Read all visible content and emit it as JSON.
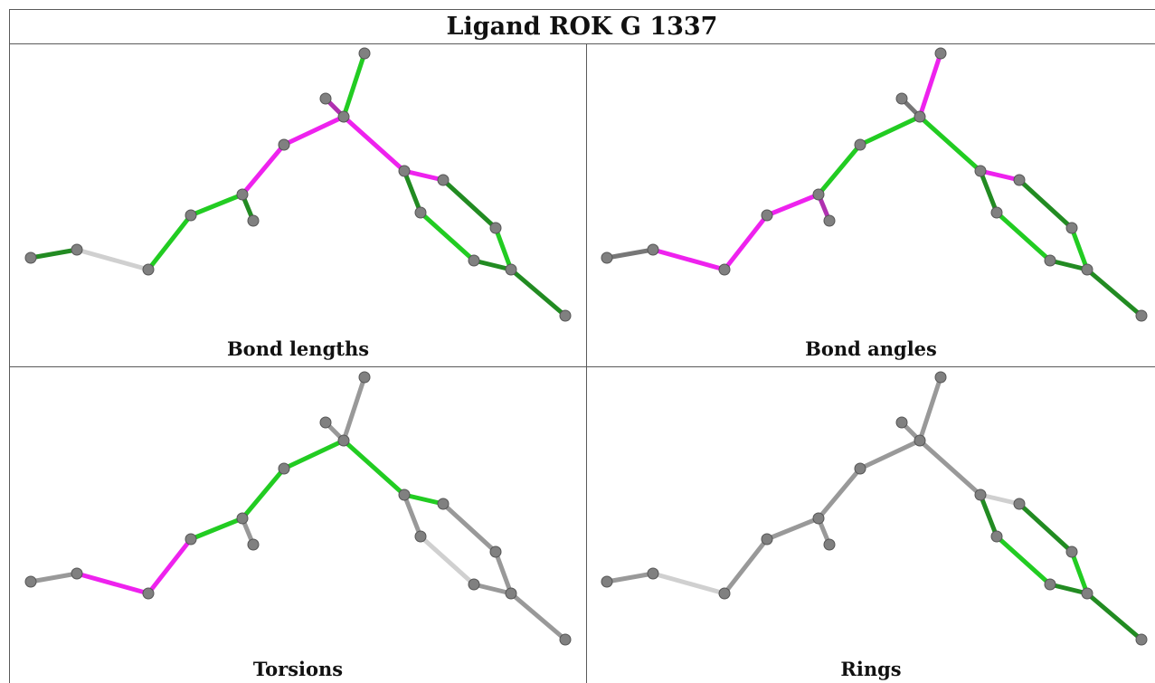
{
  "title": "Ligand ROK G 1337",
  "panels": [
    {
      "caption": "Bond lengths",
      "bond_colors": [
        "dkgreen",
        "light",
        "green",
        "green",
        "magenta",
        "magenta",
        "magenta",
        "dkmagenta",
        "green",
        "dkgreen",
        "magenta",
        "dkgreen",
        "dkgreen",
        "green",
        "green",
        "dkgreen",
        "dkgreen",
        "ltgreen",
        "green"
      ]
    },
    {
      "caption": "Bond angles",
      "bond_colors": [
        "dkgray",
        "magenta",
        "magenta",
        "magenta",
        "green",
        "green",
        "green",
        "dkgray",
        "magenta",
        "dkmagenta",
        "magenta",
        "dkgreen",
        "dkgreen",
        "green",
        "green",
        "dkgreen",
        "dkgreen",
        "ltgreen",
        "green"
      ]
    },
    {
      "caption": "Torsions",
      "bond_colors": [
        "gray",
        "magenta",
        "magenta",
        "green",
        "green",
        "green",
        "green",
        "gray",
        "gray",
        "gray",
        "green",
        "gray",
        "gray",
        "lightgray",
        "gray",
        "gray",
        "gray",
        "lightgray",
        "lightgray"
      ]
    },
    {
      "caption": "Rings",
      "bond_colors": [
        "gray",
        "lightgray",
        "gray",
        "gray",
        "gray",
        "gray",
        "gray",
        "gray",
        "gray",
        "gray",
        "lightgray",
        "dkgreen",
        "dkgreen",
        "green",
        "green",
        "dkgreen",
        "dkgreen",
        "ltgreen",
        "lightgray"
      ]
    }
  ],
  "colors": {
    "green": "#22cc22",
    "dkgreen": "#228b22",
    "ltgreen": "#66dd66",
    "magenta": "#ee22ee",
    "dkmagenta": "#b030b0",
    "gray": "#999999",
    "dkgray": "#777777",
    "lightgray": "#d0d0d0",
    "light": "#d0d0d0",
    "atom": "#808080"
  }
}
